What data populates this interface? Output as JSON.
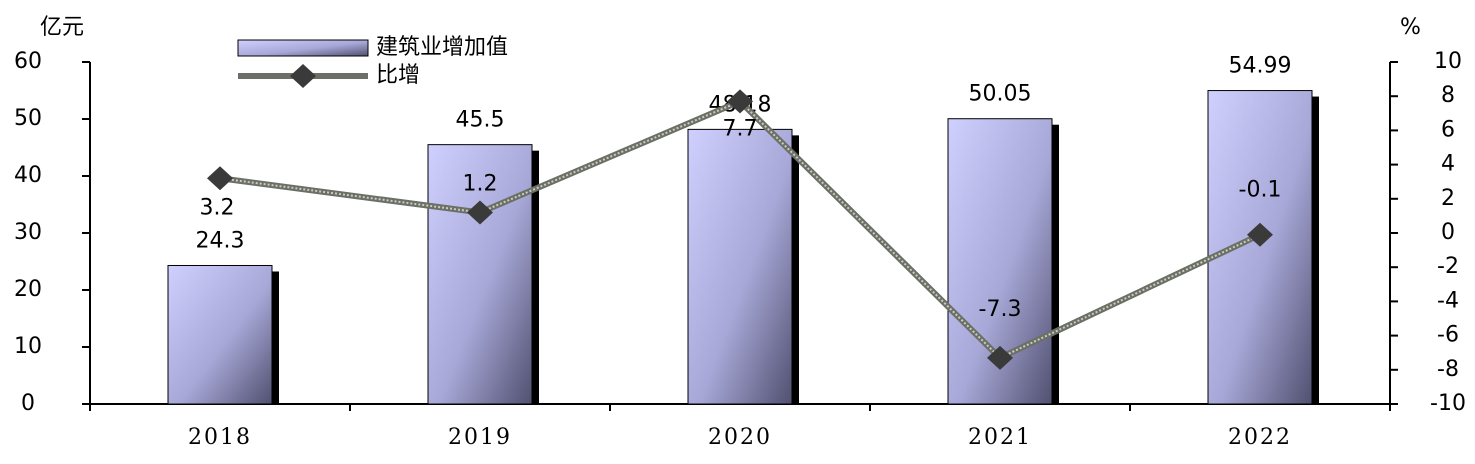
{
  "chart_data": {
    "type": "bar",
    "y_axis_label": "亿元",
    "y2_axis_label": "%",
    "categories": [
      "2018",
      "2019",
      "2020",
      "2021",
      "2022"
    ],
    "series": [
      {
        "name": "建筑业增加值",
        "type": "bar",
        "color": "#b8b8f0",
        "values": [
          24.3,
          45.5,
          48.18,
          50.05,
          54.99
        ]
      },
      {
        "name": "比增",
        "type": "line",
        "axis": "y2",
        "color": "#6b6f66",
        "values": [
          3.2,
          1.2,
          7.7,
          -7.3,
          -0.1
        ]
      }
    ],
    "ylim": [
      0,
      60
    ],
    "yticks": [
      0,
      10,
      20,
      30,
      40,
      50,
      60
    ],
    "y2lim": [
      -10,
      10
    ],
    "y2ticks": [
      -10,
      -8,
      -6,
      -4,
      -2,
      0,
      2,
      4,
      6,
      8,
      10
    ],
    "legend": "top-left"
  }
}
